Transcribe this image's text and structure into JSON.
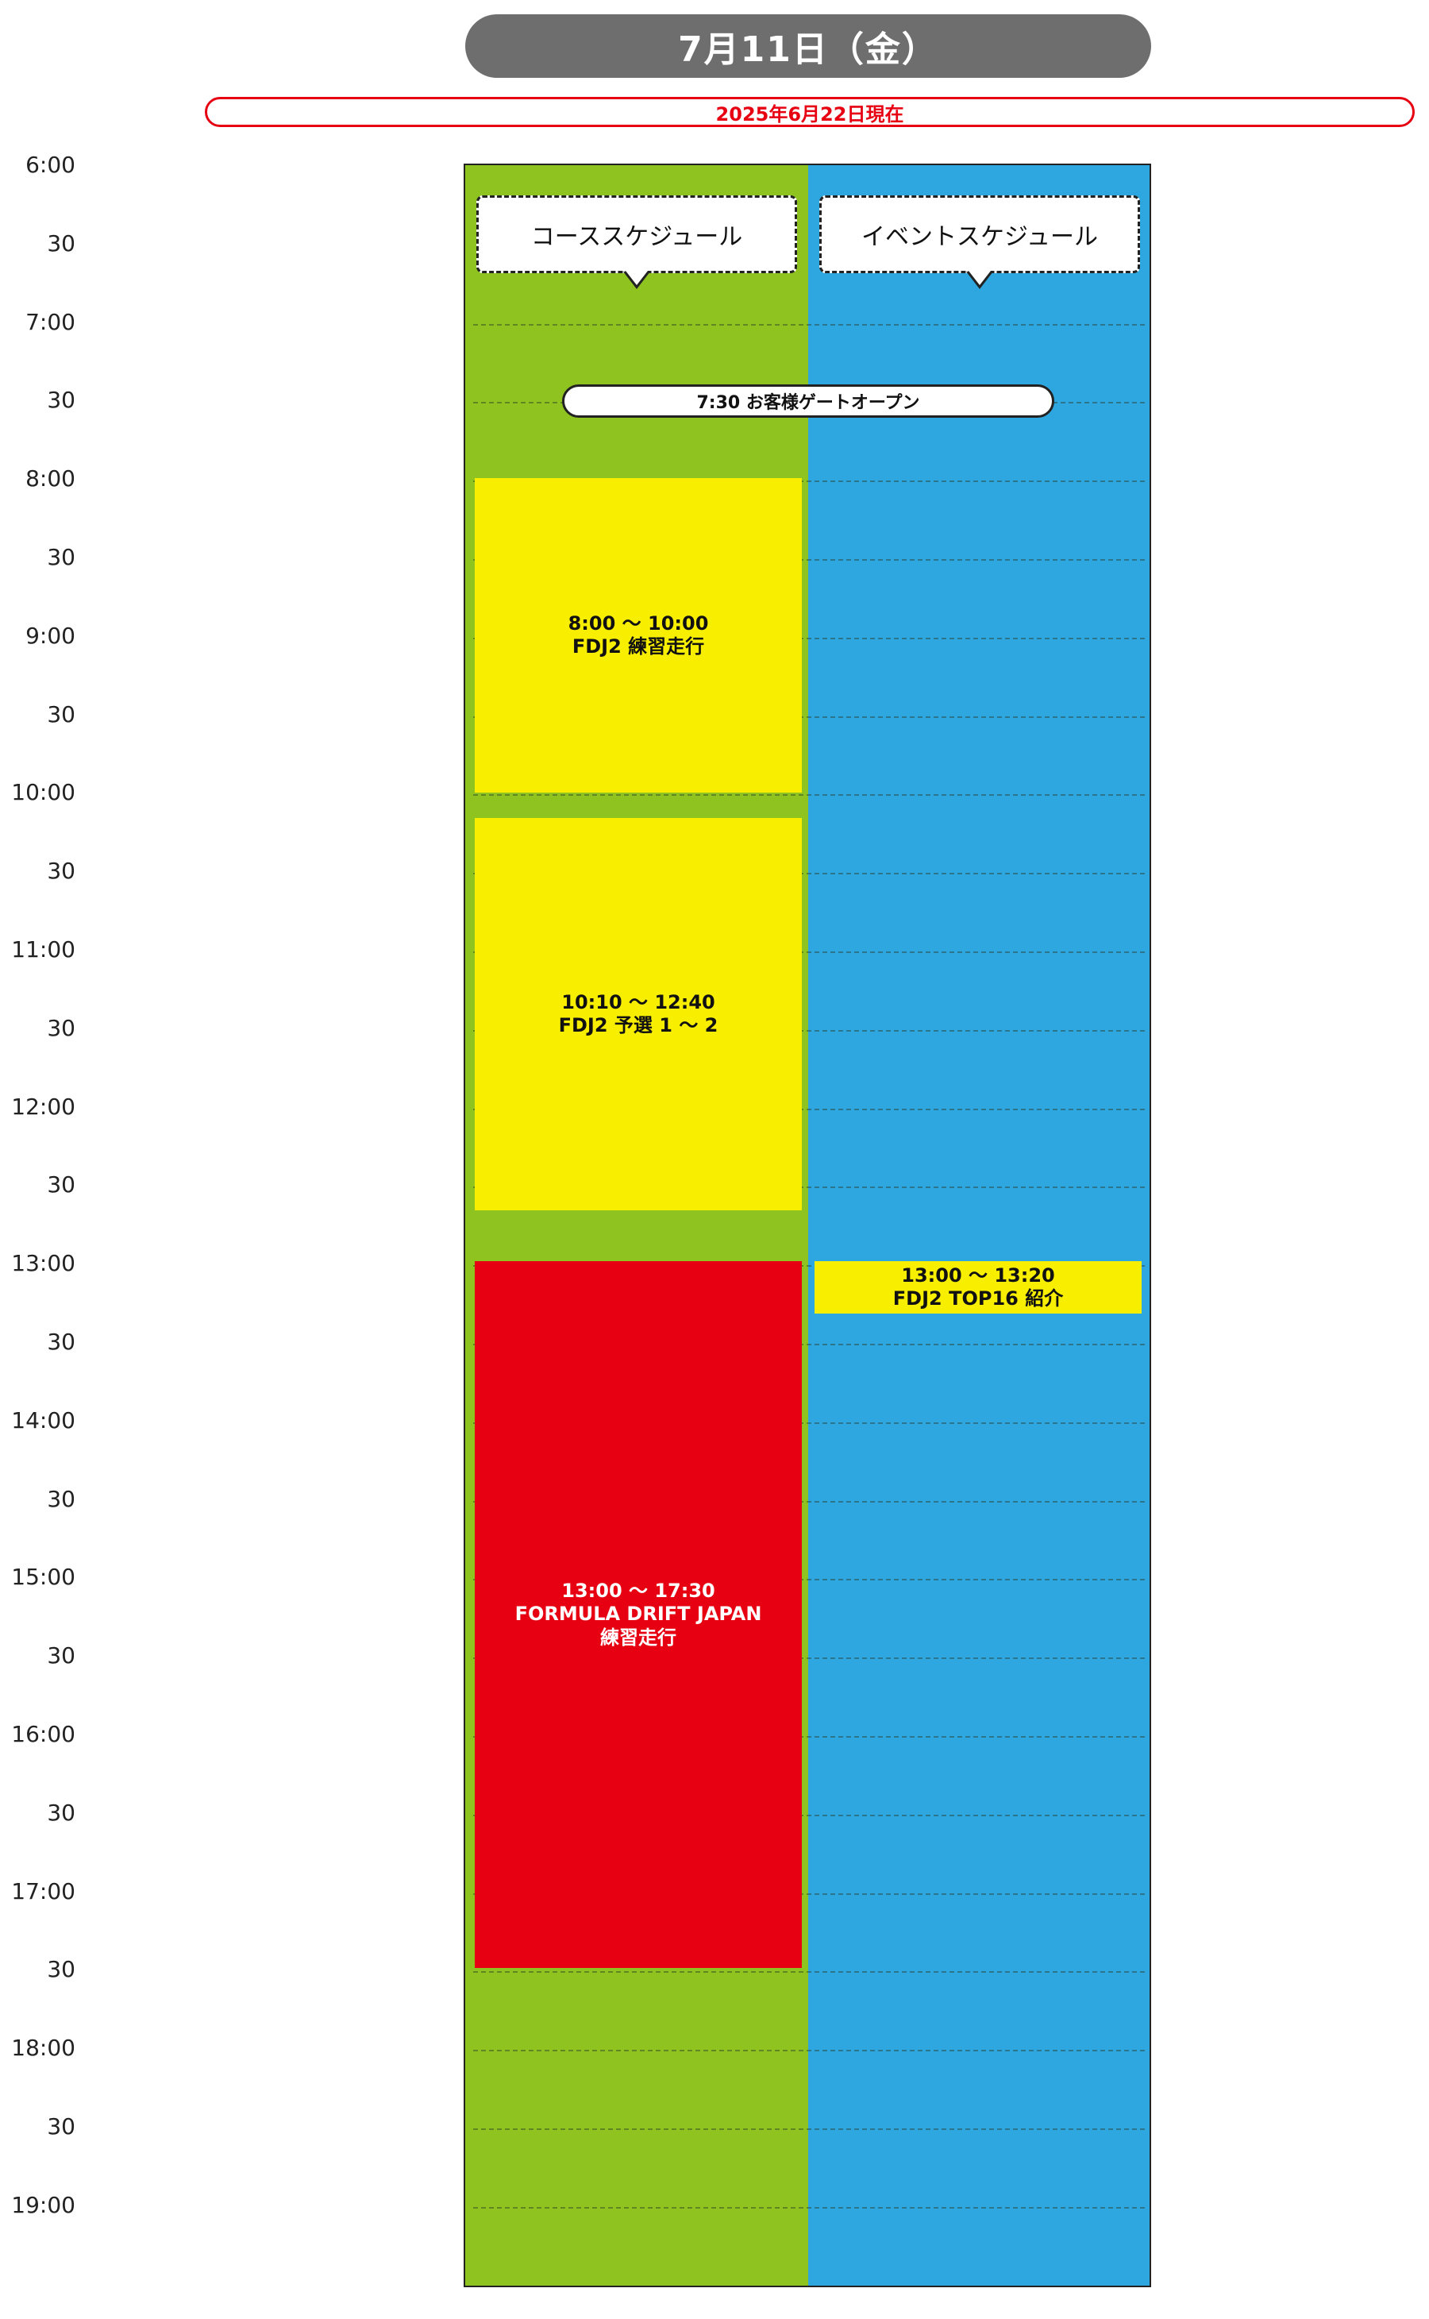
{
  "header": {
    "date": "7月11日（金）",
    "as_of": "2025年6月22日現在"
  },
  "times": [
    "6:00",
    "30",
    "7:00",
    "30",
    "8:00",
    "30",
    "9:00",
    "30",
    "10:00",
    "30",
    "11:00",
    "30",
    "12:00",
    "30",
    "13:00",
    "30",
    "14:00",
    "30",
    "15:00",
    "30",
    "16:00",
    "30",
    "17:00",
    "30",
    "18:00",
    "30",
    "19:00"
  ],
  "columns": {
    "course": "コーススケジュール",
    "event": "イベントスケジュール"
  },
  "gate_open": "7:30 お客様ゲートオープン",
  "course_blocks": [
    {
      "time": "8:00 ～ 10:00",
      "title": "FDJ2 練習走行"
    },
    {
      "time": "10:10 ～ 12:40",
      "title": "FDJ2 予選 1 ～ 2"
    },
    {
      "time": "13:00 ～ 17:30",
      "title": "FORMULA DRIFT JAPAN",
      "subtitle": "練習走行"
    }
  ],
  "event_blocks": [
    {
      "time": "13:00 ～ 13:20",
      "title": "FDJ2 TOP16 紹介"
    }
  ],
  "colors": {
    "course_bg": "#8fc31f",
    "event_bg": "#2ea7e0",
    "block_yellow": "#f8ef00",
    "block_red": "#e60012",
    "header_gray": "#6e6e6e",
    "accent_red": "#e60012"
  }
}
